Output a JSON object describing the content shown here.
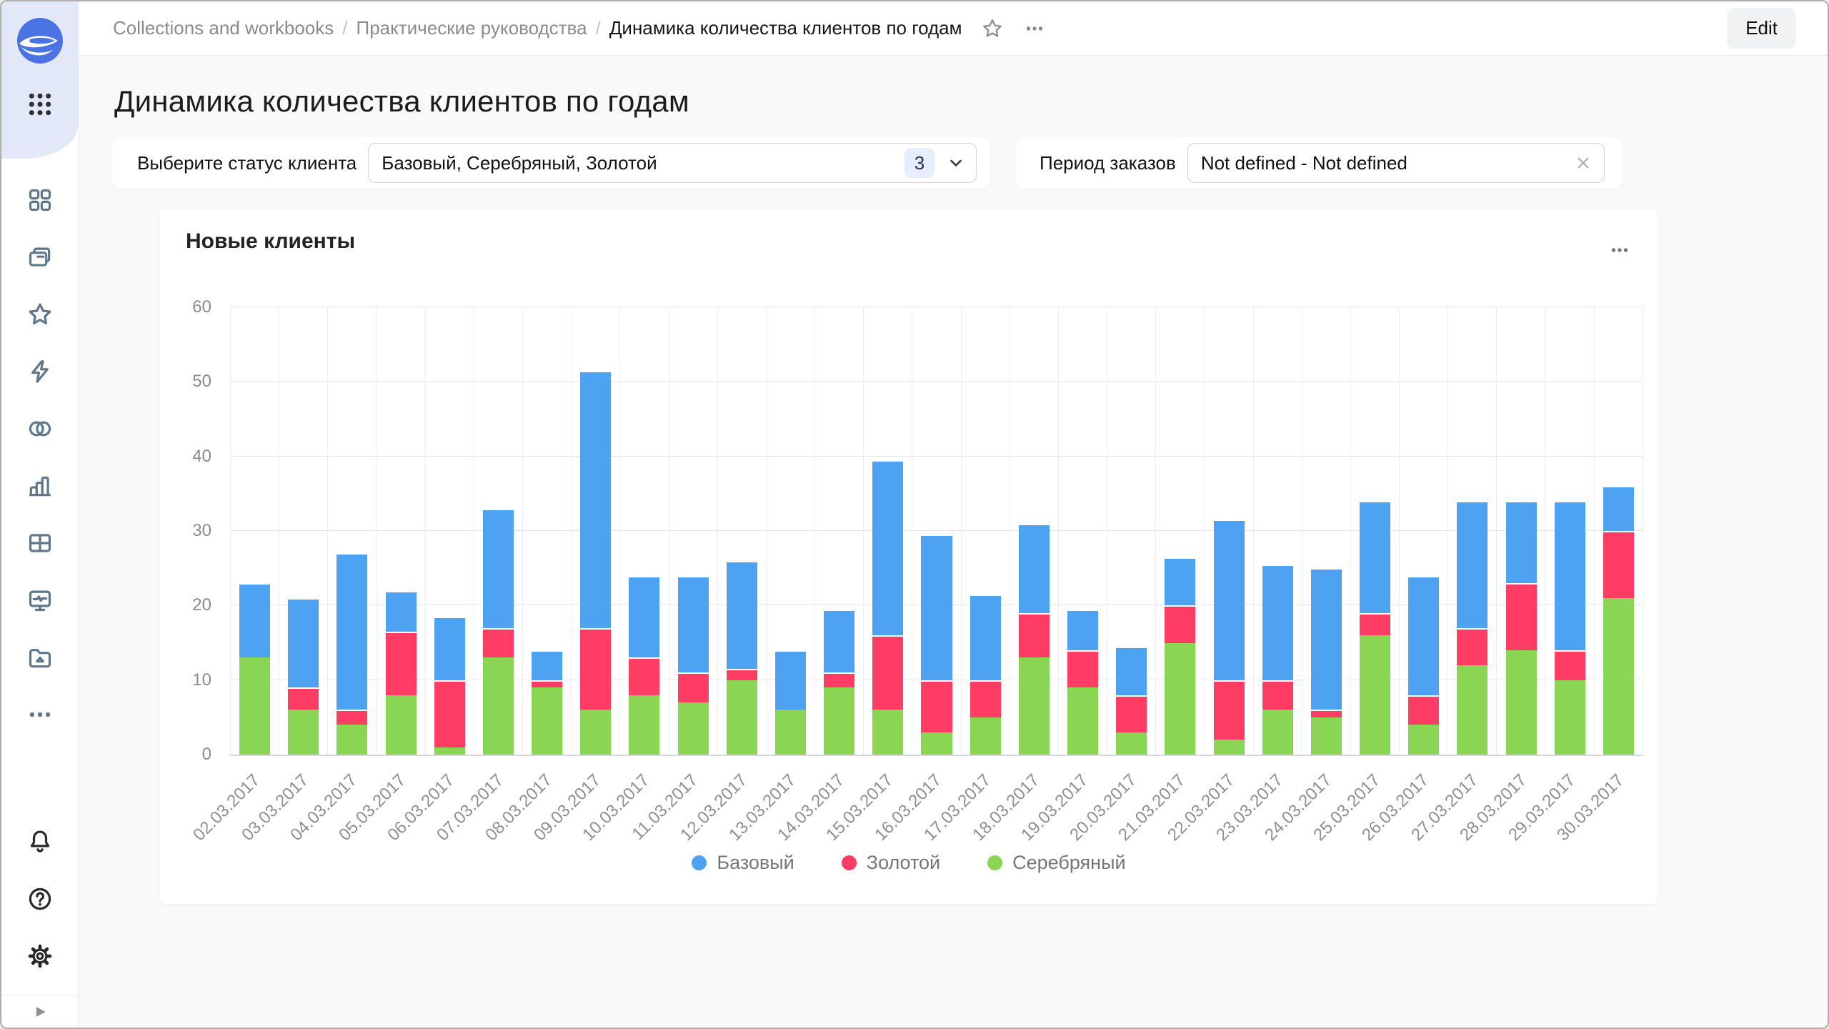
{
  "topbar": {
    "breadcrumb": [
      "Collections and workbooks",
      "Практические руководства",
      "Динамика количества клиентов по годам"
    ],
    "separator": "/",
    "edit_label": "Edit"
  },
  "page": {
    "title": "Динамика количества клиентов по годам"
  },
  "filters": {
    "status": {
      "label": "Выберите статус клиента",
      "value": "Базовый, Серебряный, Золотой",
      "count": "3"
    },
    "period": {
      "label": "Период заказов",
      "value": "Not defined - Not defined"
    }
  },
  "chart": {
    "title": "Новые клиенты"
  },
  "chart_data": {
    "type": "bar",
    "stacked": true,
    "title": "Новые клиенты",
    "categories": [
      "02.03.2017",
      "03.03.2017",
      "04.03.2017",
      "05.03.2017",
      "06.03.2017",
      "07.03.2017",
      "08.03.2017",
      "09.03.2017",
      "10.03.2017",
      "11.03.2017",
      "12.03.2017",
      "13.03.2017",
      "14.03.2017",
      "15.03.2017",
      "16.03.2017",
      "17.03.2017",
      "18.03.2017",
      "19.03.2017",
      "20.03.2017",
      "21.03.2017",
      "22.03.2017",
      "23.03.2017",
      "24.03.2017",
      "25.03.2017",
      "26.03.2017",
      "27.03.2017",
      "28.03.2017",
      "29.03.2017",
      "30.03.2017"
    ],
    "series": [
      {
        "name": "Базовый",
        "color": "#4DA2F1",
        "values": [
          10,
          12,
          21,
          5.5,
          8.5,
          16,
          4,
          34.5,
          11,
          13,
          14.5,
          8,
          8.5,
          23.5,
          19.5,
          11.5,
          12,
          5.5,
          6.5,
          6.5,
          21.5,
          15.5,
          19,
          15,
          16,
          17,
          11,
          20,
          6
        ]
      },
      {
        "name": "Золотой",
        "color": "#FF3D64",
        "values": [
          0,
          3,
          2,
          8.5,
          9,
          4,
          1,
          11,
          5,
          4,
          1.5,
          0,
          2,
          10,
          7,
          5,
          6,
          5,
          5,
          5,
          8,
          4,
          1,
          3,
          4,
          5,
          9,
          4,
          9
        ]
      },
      {
        "name": "Серебряный",
        "color": "#8AD554",
        "values": [
          13,
          6,
          4,
          8,
          1,
          13,
          9,
          6,
          8,
          7,
          10,
          6,
          9,
          6,
          3,
          5,
          13,
          9,
          3,
          15,
          2,
          6,
          5,
          16,
          4,
          12,
          14,
          10,
          21
        ]
      }
    ],
    "stack_order_bottom_to_top": [
      "Серебряный",
      "Золотой",
      "Базовый"
    ],
    "xlabel": "",
    "ylabel": "",
    "ylim": [
      0,
      60
    ],
    "yticks": [
      0,
      10,
      20,
      30,
      40,
      50,
      60
    ],
    "grid": true,
    "legend_position": "bottom"
  },
  "sidebar": {
    "items": [
      "dashboards",
      "collections",
      "favorites",
      "connections",
      "datasets",
      "charts",
      "tables",
      "monitoring",
      "storage",
      "more",
      "notifications",
      "help",
      "settings",
      "expand"
    ]
  }
}
